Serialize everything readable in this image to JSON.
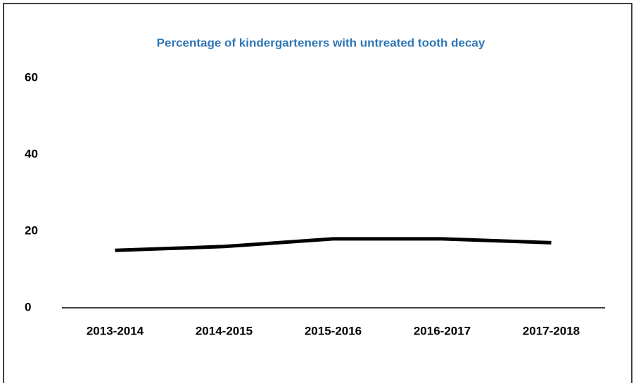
{
  "chart_data": {
    "type": "line",
    "title": "Percentage of kindergarteners with untreated tooth decay",
    "categories": [
      "2013-2014",
      "2014-2015",
      "2015-2016",
      "2016-2017",
      "2017-2018"
    ],
    "values": [
      15,
      16,
      18,
      18,
      17
    ],
    "color": "#000000",
    "title_color": "#2e75b6",
    "ylim": [
      0,
      60
    ],
    "yticks": [
      0,
      20,
      40,
      60
    ],
    "grid": false
  }
}
